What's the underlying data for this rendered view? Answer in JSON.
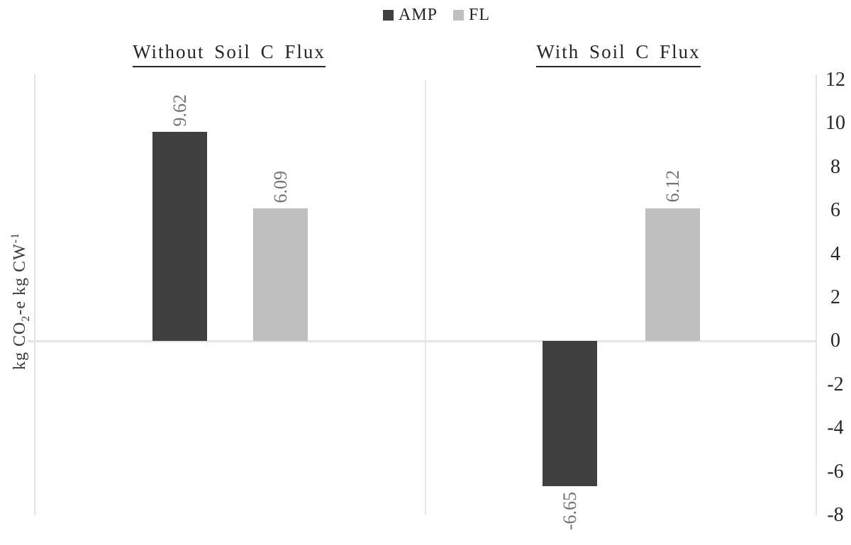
{
  "legend": {
    "items": [
      {
        "label": "AMP",
        "color": "#404040"
      },
      {
        "label": "FL",
        "color": "#bfbfbf"
      }
    ]
  },
  "chart_data": {
    "type": "bar",
    "panels": [
      {
        "title": "Without Soil C Flux",
        "categories": [
          "AMP",
          "FL"
        ],
        "values": [
          9.62,
          6.09
        ],
        "value_labels": [
          "9.62",
          "6.09"
        ]
      },
      {
        "title": "With Soil C Flux",
        "categories": [
          "AMP",
          "FL"
        ],
        "values": [
          -6.65,
          6.12
        ],
        "value_labels": [
          "-6.65",
          "6.12"
        ]
      }
    ],
    "series_colors": {
      "AMP": "#404040",
      "FL": "#bfbfbf"
    },
    "ylabel": "kg CO2-e kg CW-1",
    "ylabel_parts": {
      "pre": "kg CO",
      "sub": "2",
      "mid": "-e kg CW",
      "sup": "-1"
    },
    "yticks": [
      12,
      10,
      8,
      6,
      4,
      2,
      0,
      -2,
      -4,
      -6,
      -8
    ],
    "ylim": [
      -8,
      12
    ],
    "grid": false,
    "legend_position": "top-center",
    "value_label_color": "#737373",
    "tick_label_color": "#262626",
    "axis_line_color": "#e3e3e3"
  }
}
